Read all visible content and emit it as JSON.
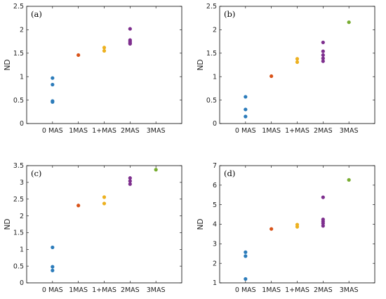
{
  "chart_data": [
    {
      "type": "scatter",
      "panel_label": "(a)",
      "ylabel": "ND",
      "categories": [
        "0 MAS",
        "1MAS",
        "1+MAS",
        "2MAS",
        "3MAS"
      ],
      "ylim": [
        0,
        2.5
      ],
      "yticks": [
        0,
        0.5,
        1,
        1.5,
        2,
        2.5
      ],
      "ytick_labels": [
        "0",
        "0.5",
        "1",
        "1.5",
        "2",
        "2.5"
      ],
      "grid": false,
      "series": [
        {
          "category": "0 MAS",
          "color": "#2b7bba",
          "values": [
            0.97,
            0.83,
            0.48,
            0.46
          ]
        },
        {
          "category": "1MAS",
          "color": "#d95319",
          "values": [
            1.46
          ]
        },
        {
          "category": "1+MAS",
          "color": "#edb120",
          "values": [
            1.62,
            1.55
          ]
        },
        {
          "category": "2MAS",
          "color": "#7e2f8e",
          "values": [
            2.02,
            1.78,
            1.75,
            1.72,
            1.7
          ]
        },
        {
          "category": "3MAS",
          "color": "#77ac30",
          "values": []
        }
      ]
    },
    {
      "type": "scatter",
      "panel_label": "(b)",
      "ylabel": "ND",
      "categories": [
        "0 MAS",
        "1MAS",
        "1+MAS",
        "2MAS",
        "3MAS"
      ],
      "ylim": [
        0,
        2.5
      ],
      "yticks": [
        0,
        0.5,
        1,
        1.5,
        2,
        2.5
      ],
      "ytick_labels": [
        "0",
        "0.5",
        "1",
        "1.5",
        "2",
        "2.5"
      ],
      "grid": false,
      "series": [
        {
          "category": "0 MAS",
          "color": "#2b7bba",
          "values": [
            0.57,
            0.3,
            0.15
          ]
        },
        {
          "category": "1MAS",
          "color": "#d95319",
          "values": [
            1.01
          ]
        },
        {
          "category": "1+MAS",
          "color": "#edb120",
          "values": [
            1.38,
            1.31
          ]
        },
        {
          "category": "2MAS",
          "color": "#7e2f8e",
          "values": [
            1.73,
            1.54,
            1.46,
            1.39,
            1.33
          ]
        },
        {
          "category": "3MAS",
          "color": "#77ac30",
          "values": [
            2.16
          ]
        }
      ]
    },
    {
      "type": "scatter",
      "panel_label": "(c)",
      "ylabel": "ND",
      "categories": [
        "0 MAS",
        "1MAS",
        "1+MAS",
        "2MAS",
        "3MAS"
      ],
      "ylim": [
        0,
        3.5
      ],
      "yticks": [
        0,
        0.5,
        1,
        1.5,
        2,
        2.5,
        3,
        3.5
      ],
      "ytick_labels": [
        "0",
        "0.5",
        "1",
        "1.5",
        "2",
        "2.5",
        "3",
        "3.5"
      ],
      "grid": false,
      "series": [
        {
          "category": "0 MAS",
          "color": "#2b7bba",
          "values": [
            1.06,
            0.48,
            0.37
          ]
        },
        {
          "category": "1MAS",
          "color": "#d95319",
          "values": [
            2.31
          ]
        },
        {
          "category": "1+MAS",
          "color": "#edb120",
          "values": [
            2.56,
            2.37
          ]
        },
        {
          "category": "2MAS",
          "color": "#7e2f8e",
          "values": [
            3.13,
            3.04,
            2.95
          ]
        },
        {
          "category": "3MAS",
          "color": "#77ac30",
          "values": [
            3.38
          ]
        }
      ]
    },
    {
      "type": "scatter",
      "panel_label": "(d)",
      "ylabel": "ND",
      "categories": [
        "0 MAS",
        "1MAS",
        "1+MAS",
        "2MAS",
        "3MAS"
      ],
      "ylim": [
        1,
        7
      ],
      "yticks": [
        1,
        2,
        3,
        4,
        5,
        6,
        7
      ],
      "ytick_labels": [
        "1",
        "2",
        "3",
        "4",
        "5",
        "6",
        "7"
      ],
      "grid": false,
      "series": [
        {
          "category": "0 MAS",
          "color": "#2b7bba",
          "values": [
            2.57,
            2.37,
            1.2
          ]
        },
        {
          "category": "1MAS",
          "color": "#d95319",
          "values": [
            3.76
          ]
        },
        {
          "category": "1+MAS",
          "color": "#edb120",
          "values": [
            3.98,
            3.87
          ]
        },
        {
          "category": "2MAS",
          "color": "#7e2f8e",
          "values": [
            5.38,
            4.25,
            4.15,
            4.05,
            3.92
          ]
        },
        {
          "category": "3MAS",
          "color": "#77ac30",
          "values": [
            6.27
          ]
        }
      ]
    }
  ]
}
